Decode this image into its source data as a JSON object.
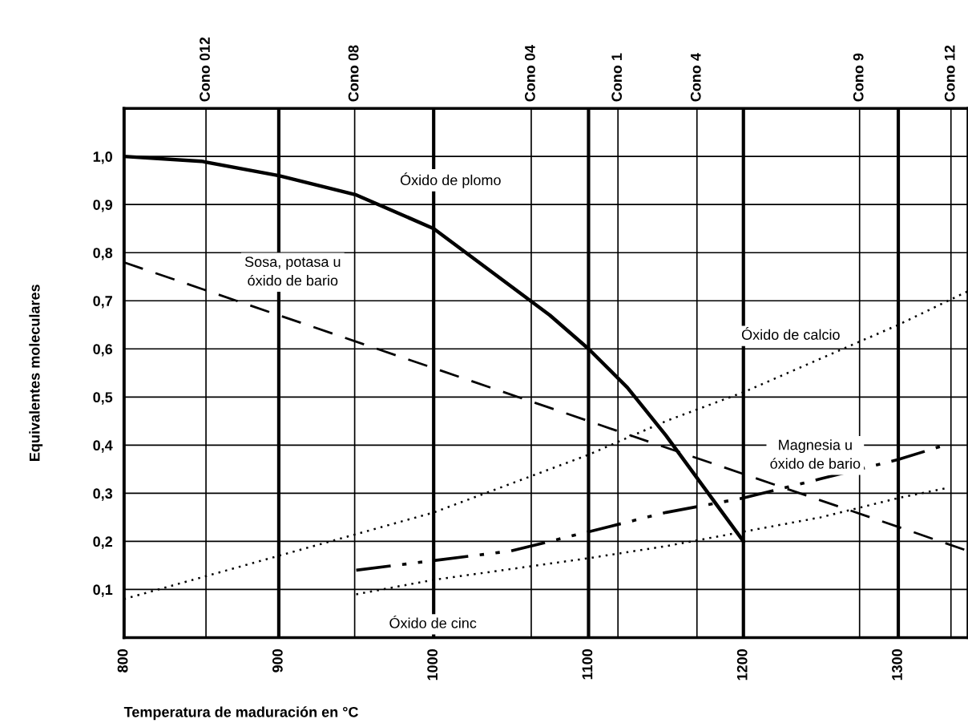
{
  "chart_data": {
    "type": "line",
    "xlabel": "Temperatura de maduración en °C",
    "ylabel": "Equivalentes moleculares",
    "xlim": [
      800,
      1345
    ],
    "xticks": [
      800,
      900,
      1000,
      1100,
      1200,
      1300
    ],
    "ref_lines": [
      {
        "axis": "x",
        "value": 853,
        "label": "Cono 012"
      },
      {
        "axis": "x",
        "value": 949,
        "label": "Cono 08"
      },
      {
        "axis": "x",
        "value": 1063,
        "label": "Cono 04"
      },
      {
        "axis": "x",
        "value": 1119,
        "label": "Cono 1"
      },
      {
        "axis": "x",
        "value": 1170,
        "label": "Cono 4"
      },
      {
        "axis": "x",
        "value": 1275,
        "label": "Cono 9"
      },
      {
        "axis": "x",
        "value": 1334,
        "label": "Cono 12"
      }
    ],
    "ylim": [
      0,
      1.1
    ],
    "yticks": [
      {
        "value": 0.1,
        "label": "0,1"
      },
      {
        "value": 0.2,
        "label": "0,2"
      },
      {
        "value": 0.3,
        "label": "0,3"
      },
      {
        "value": 0.4,
        "label": "0,4"
      },
      {
        "value": 0.5,
        "label": "0,5"
      },
      {
        "value": 0.6,
        "label": "0,6"
      },
      {
        "value": 0.7,
        "label": "0,7"
      },
      {
        "value": 0.8,
        "label": "0,8"
      },
      {
        "value": 0.9,
        "label": "0,9"
      },
      {
        "value": 1.0,
        "label": "1,0"
      }
    ],
    "grid": true,
    "marker": "none",
    "series": [
      {
        "name": "Óxido de plomo",
        "color": "#000000",
        "line_style": "solid",
        "x": [
          800,
          850,
          900,
          950,
          1000,
          1050,
          1075,
          1100,
          1125,
          1150,
          1175,
          1200
        ],
        "values": [
          1.0,
          0.99,
          0.96,
          0.92,
          0.85,
          0.73,
          0.67,
          0.6,
          0.52,
          0.42,
          0.31,
          0.2
        ]
      },
      {
        "name": "Sosa, potasa u\nóxido de bario",
        "color": "#000000",
        "line_style": "dashed",
        "x": [
          800,
          900,
          1000,
          1100,
          1200,
          1300,
          1345
        ],
        "values": [
          0.78,
          0.67,
          0.56,
          0.45,
          0.34,
          0.23,
          0.18
        ]
      },
      {
        "name": "Óxido de calcio",
        "color": "#000000",
        "line_style": "dotted",
        "x": [
          800,
          900,
          1000,
          1050,
          1100,
          1150,
          1200,
          1250,
          1300,
          1345
        ],
        "values": [
          0.08,
          0.17,
          0.26,
          0.32,
          0.38,
          0.45,
          0.51,
          0.58,
          0.65,
          0.72
        ]
      },
      {
        "name": "Magnesia u\nóxido de bario",
        "color": "#000000",
        "line_style": "dashdot",
        "x": [
          950,
          1000,
          1050,
          1100,
          1150,
          1200,
          1250,
          1300,
          1330
        ],
        "values": [
          0.14,
          0.16,
          0.18,
          0.22,
          0.26,
          0.29,
          0.33,
          0.37,
          0.4
        ]
      },
      {
        "name": "Óxido de cinc",
        "color": "#000000",
        "line_style": "dotted",
        "x": [
          950,
          1000,
          1100,
          1150,
          1200,
          1250,
          1300,
          1330
        ],
        "values": [
          0.09,
          0.12,
          0.165,
          0.19,
          0.22,
          0.25,
          0.29,
          0.31
        ]
      }
    ]
  }
}
